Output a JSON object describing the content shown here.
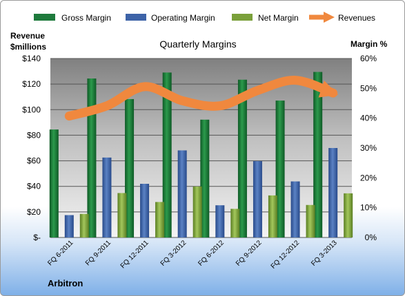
{
  "chart_data": {
    "type": "bar",
    "title": "Quarterly Margins",
    "company": "Arbitron",
    "left_axis_label": [
      "Revenue",
      "$millions"
    ],
    "right_axis_label": "Margin %",
    "categories": [
      "FQ 6-2011",
      "FQ 9-2011",
      "FQ 12-2011",
      "FQ 3-2012",
      "FQ 6-2012",
      "FQ 9-2012",
      "FQ 12-2012",
      "FQ 3-2013"
    ],
    "left_ticks": [
      "$-",
      "$20",
      "$40",
      "$60",
      "$80",
      "$100",
      "$120",
      "$140"
    ],
    "right_ticks": [
      "0%",
      "10%",
      "20%",
      "30%",
      "40%",
      "50%",
      "60%"
    ],
    "ylim_left": [
      0,
      140
    ],
    "ylim_right": [
      0,
      60
    ],
    "grid": true,
    "legend_position": "top",
    "series": [
      {
        "name": "Gross Margin",
        "axis": "right",
        "color": "#1e7a3c",
        "values": [
          36.2,
          53.3,
          46.4,
          55.3,
          39.5,
          52.9,
          45.9,
          55.5
        ]
      },
      {
        "name": "Operating Margin",
        "axis": "right",
        "color": "#3d63a8",
        "values": [
          7.5,
          26.8,
          18.0,
          29.2,
          10.8,
          25.6,
          18.8,
          30.0
        ]
      },
      {
        "name": "Net Margin",
        "axis": "right",
        "color": "#7aa03a",
        "values": [
          7.9,
          14.9,
          11.9,
          17.1,
          9.6,
          14.1,
          10.9,
          14.8
        ]
      },
      {
        "name": "Revenues",
        "axis": "left",
        "color": "#f0883e",
        "type": "line",
        "values": [
          95,
          103,
          118,
          107,
          103,
          115,
          123,
          113
        ]
      }
    ]
  }
}
